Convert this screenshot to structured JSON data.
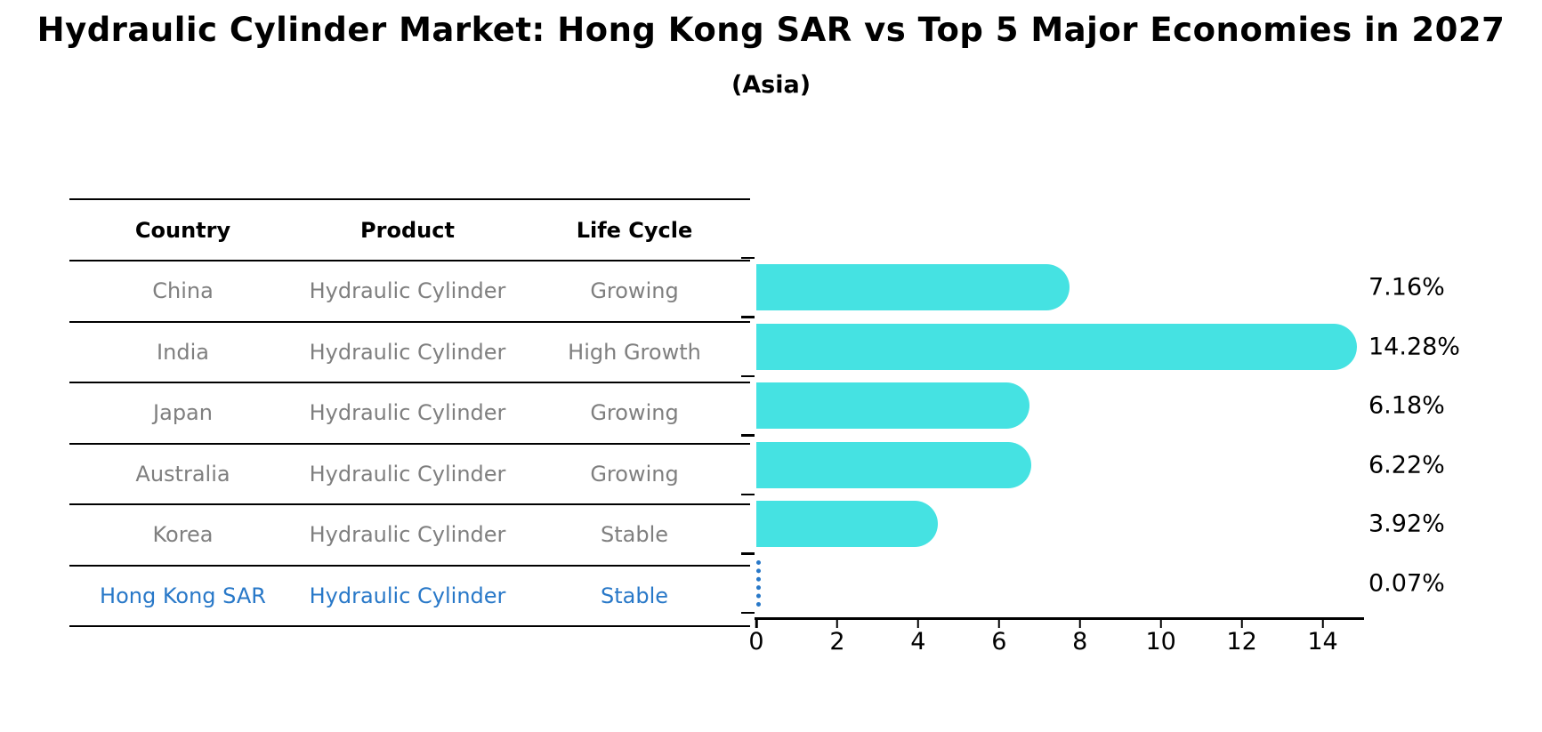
{
  "header": {
    "title": "Hydraulic Cylinder Market: Hong Kong SAR vs Top 5 Major Economies in 2027",
    "subtitle": "(Asia)"
  },
  "table": {
    "headers": [
      "Country",
      "Product",
      "Life Cycle"
    ],
    "rows": [
      {
        "country": "China",
        "product": "Hydraulic Cylinder",
        "life_cycle": "Growing",
        "highlight": false
      },
      {
        "country": "India",
        "product": "Hydraulic Cylinder",
        "life_cycle": "High Growth",
        "highlight": false
      },
      {
        "country": "Japan",
        "product": "Hydraulic Cylinder",
        "life_cycle": "Growing",
        "highlight": false
      },
      {
        "country": "Australia",
        "product": "Hydraulic Cylinder",
        "life_cycle": "Growing",
        "highlight": false
      },
      {
        "country": "Korea",
        "product": "Hydraulic Cylinder",
        "life_cycle": "Stable",
        "highlight": false
      },
      {
        "country": "Hong Kong SAR",
        "product": "Hydraulic Cylinder",
        "life_cycle": "Stable",
        "highlight": true
      }
    ]
  },
  "chart_data": {
    "type": "bar",
    "orientation": "horizontal",
    "title": "Hydraulic Cylinder Market: Hong Kong SAR vs Top 5 Major Economies in 2027",
    "subtitle": "(Asia)",
    "categories": [
      "China",
      "India",
      "Japan",
      "Australia",
      "Korea",
      "Hong Kong SAR"
    ],
    "values": [
      7.16,
      14.28,
      6.18,
      6.22,
      3.92,
      0.07
    ],
    "value_labels": [
      "7.16%",
      "14.28%",
      "6.18%",
      "6.22%",
      "3.92%",
      "0.07%"
    ],
    "xlim": [
      0,
      15
    ],
    "xticks": [
      0,
      2,
      4,
      6,
      8,
      10,
      12,
      14
    ],
    "grid": false,
    "legend": false,
    "highlight_index": 5
  },
  "colors": {
    "bar": "#45e2e2",
    "highlight": "#2878c8",
    "table_text": "#7f7f7f",
    "axis": "#000000"
  }
}
